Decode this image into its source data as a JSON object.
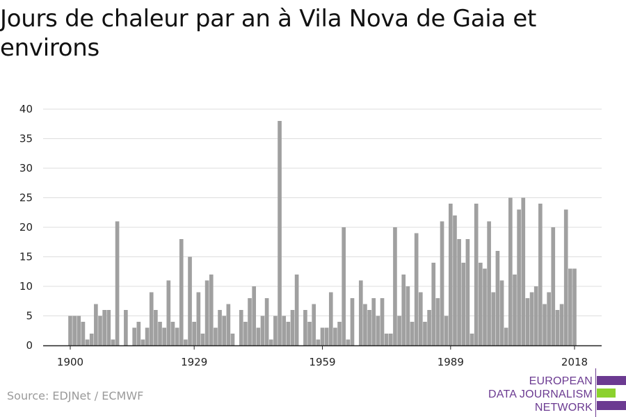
{
  "title": "Jours de chaleur par an à Vila Nova de Gaia et environs",
  "source": "Source: EDJNet / ECMWF",
  "logo": {
    "line1": "EUROPEAN",
    "line2": "DATA JOURNALISM",
    "line3": "NETWORK"
  },
  "colors": {
    "bar": "#a0a0a0",
    "grid": "#dddddd",
    "axis": "#222222",
    "logo_purple": "#6b3a91",
    "logo_green": "#8bd12e"
  },
  "chart_data": {
    "type": "bar",
    "title": "Jours de chaleur par an à Vila Nova de Gaia et environs",
    "x_start": 1900,
    "x_end": 2018,
    "xticks": [
      1900,
      1929,
      1959,
      1989,
      2018
    ],
    "ylim": [
      0,
      40
    ],
    "yticks": [
      0,
      5,
      10,
      15,
      20,
      25,
      30,
      35,
      40
    ],
    "grid": true,
    "values": [
      5,
      5,
      5,
      4,
      1,
      2,
      7,
      5,
      6,
      6,
      1,
      21,
      0,
      6,
      0,
      3,
      4,
      1,
      3,
      9,
      6,
      4,
      3,
      11,
      4,
      3,
      18,
      1,
      15,
      4,
      9,
      2,
      11,
      12,
      3,
      6,
      5,
      7,
      2,
      0,
      6,
      4,
      8,
      10,
      3,
      5,
      8,
      1,
      5,
      38,
      5,
      4,
      6,
      12,
      0,
      6,
      4,
      7,
      1,
      3,
      3,
      9,
      3,
      4,
      20,
      1,
      8,
      0,
      11,
      7,
      6,
      8,
      5,
      8,
      2,
      2,
      20,
      5,
      12,
      10,
      4,
      19,
      9,
      4,
      6,
      14,
      8,
      21,
      5,
      24,
      22,
      18,
      14,
      18,
      2,
      24,
      14,
      13,
      21,
      9,
      16,
      11,
      3,
      25,
      12,
      23,
      25,
      8,
      9,
      10,
      24,
      7,
      9,
      20,
      6,
      7,
      23,
      13,
      13
    ]
  }
}
